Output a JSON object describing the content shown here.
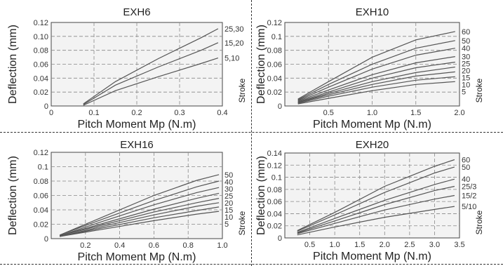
{
  "chart_data": [
    {
      "type": "line",
      "title": "EXH6",
      "xlabel": "Pitch Moment Mp  (N.m)",
      "ylabel": "Deflection  (mm)",
      "series_axis_label": "Stroke",
      "xlim": [
        0,
        0.4
      ],
      "ylim": [
        0,
        0.12
      ],
      "xticks": [
        "0",
        "0.1",
        "0.2",
        "0.3",
        "0.4"
      ],
      "yticks": [
        "0",
        "0.02",
        "0.04",
        "0.06",
        "0.08",
        "0.10",
        "0.12"
      ],
      "grid": true,
      "series": [
        {
          "name": "25,30",
          "x": [
            0.075,
            0.15,
            0.25,
            0.35,
            0.39
          ],
          "y": [
            0.003,
            0.035,
            0.068,
            0.098,
            0.111
          ]
        },
        {
          "name": "15,20",
          "x": [
            0.075,
            0.15,
            0.25,
            0.35,
            0.39
          ],
          "y": [
            0.002,
            0.03,
            0.056,
            0.08,
            0.091
          ]
        },
        {
          "name": "5,10",
          "x": [
            0.075,
            0.15,
            0.25,
            0.35,
            0.39
          ],
          "y": [
            0.001,
            0.022,
            0.042,
            0.061,
            0.069
          ]
        }
      ]
    },
    {
      "type": "line",
      "title": "EXH10",
      "xlabel": "Pitch Moment Mp  (N.m)",
      "ylabel": "Deflection  (mm)",
      "series_axis_label": "Stroke",
      "xlim": [
        0,
        2.0
      ],
      "ylim": [
        0,
        0.12
      ],
      "xticks": [
        "0.5",
        "1.0",
        "1.5",
        "2.0"
      ],
      "yticks": [
        "0",
        "0.02",
        "0.04",
        "0.06",
        "0.08",
        "0.1",
        "0.12"
      ],
      "grid": true,
      "series": [
        {
          "name": "60",
          "x": [
            0.15,
            0.5,
            1.0,
            1.5,
            1.95
          ],
          "y": [
            0.01,
            0.035,
            0.07,
            0.095,
            0.107
          ]
        },
        {
          "name": "50",
          "x": [
            0.15,
            0.5,
            1.0,
            1.5,
            1.95
          ],
          "y": [
            0.009,
            0.031,
            0.06,
            0.083,
            0.094
          ]
        },
        {
          "name": "40",
          "x": [
            0.15,
            0.5,
            1.0,
            1.5,
            1.95
          ],
          "y": [
            0.008,
            0.027,
            0.053,
            0.073,
            0.083
          ]
        },
        {
          "name": "30",
          "x": [
            0.15,
            0.5,
            1.0,
            1.5,
            1.95
          ],
          "y": [
            0.007,
            0.023,
            0.045,
            0.062,
            0.071
          ]
        },
        {
          "name": "25",
          "x": [
            0.15,
            0.5,
            1.0,
            1.5,
            1.95
          ],
          "y": [
            0.006,
            0.02,
            0.04,
            0.055,
            0.063
          ]
        },
        {
          "name": "20",
          "x": [
            0.15,
            0.5,
            1.0,
            1.5,
            1.95
          ],
          "y": [
            0.005,
            0.018,
            0.035,
            0.048,
            0.056
          ]
        },
        {
          "name": "15",
          "x": [
            0.15,
            0.5,
            1.0,
            1.5,
            1.95
          ],
          "y": [
            0.005,
            0.016,
            0.031,
            0.043,
            0.049
          ]
        },
        {
          "name": "10",
          "x": [
            0.15,
            0.5,
            1.0,
            1.5,
            1.95
          ],
          "y": [
            0.004,
            0.014,
            0.027,
            0.037,
            0.042
          ]
        },
        {
          "name": "5",
          "x": [
            0.15,
            0.5,
            1.0,
            1.5,
            1.95
          ],
          "y": [
            0.003,
            0.011,
            0.022,
            0.031,
            0.035
          ]
        }
      ]
    },
    {
      "type": "line",
      "title": "EXH16",
      "xlabel": "Pitch Moment Mp  (N.m)",
      "ylabel": "Deflection  (mm)",
      "series_axis_label": "Stroke",
      "xlim": [
        0,
        1.0
      ],
      "ylim": [
        0,
        0.12
      ],
      "xticks": [
        "0.2",
        "0.4",
        "0.6",
        "0.8",
        "1.0"
      ],
      "yticks": [
        "0",
        "0.02",
        "0.04",
        "0.06",
        "0.08",
        "0.1",
        "0.12"
      ],
      "grid": true,
      "series": [
        {
          "name": "50",
          "x": [
            0.05,
            0.3,
            0.6,
            0.85,
            0.98
          ],
          "y": [
            0.005,
            0.03,
            0.06,
            0.081,
            0.089
          ]
        },
        {
          "name": "40",
          "x": [
            0.05,
            0.3,
            0.6,
            0.85,
            0.98
          ],
          "y": [
            0.005,
            0.027,
            0.053,
            0.072,
            0.08
          ]
        },
        {
          "name": "30",
          "x": [
            0.05,
            0.3,
            0.6,
            0.85,
            0.98
          ],
          "y": [
            0.004,
            0.024,
            0.047,
            0.064,
            0.071
          ]
        },
        {
          "name": "25",
          "x": [
            0.05,
            0.3,
            0.6,
            0.85,
            0.98
          ],
          "y": [
            0.004,
            0.021,
            0.041,
            0.056,
            0.063
          ]
        },
        {
          "name": "20",
          "x": [
            0.05,
            0.3,
            0.6,
            0.85,
            0.98
          ],
          "y": [
            0.004,
            0.019,
            0.037,
            0.05,
            0.056
          ]
        },
        {
          "name": "15",
          "x": [
            0.05,
            0.3,
            0.6,
            0.85,
            0.98
          ],
          "y": [
            0.003,
            0.017,
            0.033,
            0.045,
            0.05
          ]
        },
        {
          "name": "10",
          "x": [
            0.05,
            0.3,
            0.6,
            0.85,
            0.98
          ],
          "y": [
            0.003,
            0.015,
            0.029,
            0.039,
            0.044
          ]
        },
        {
          "name": "5",
          "x": [
            0.05,
            0.3,
            0.6,
            0.85,
            0.98
          ],
          "y": [
            0.003,
            0.013,
            0.025,
            0.034,
            0.038
          ]
        }
      ]
    },
    {
      "type": "line",
      "title": "EXH20",
      "xlabel": "Pitch Moment Mp  (N.m)",
      "ylabel": "Deflection  (mm)",
      "series_axis_label": "Stroke",
      "xlim": [
        0,
        3.5
      ],
      "ylim": [
        0,
        0.14
      ],
      "xticks": [
        "0.5",
        "1.0",
        "1.5",
        "2.0",
        "2.5",
        "3.0",
        "3.5"
      ],
      "yticks": [
        "0",
        "0.02",
        "0.04",
        "0.06",
        "0.08",
        "0.1",
        "0.12",
        "0.14"
      ],
      "grid": true,
      "series": [
        {
          "name": "60",
          "x": [
            0.25,
            1.0,
            2.0,
            3.0,
            3.4
          ],
          "y": [
            0.012,
            0.042,
            0.085,
            0.118,
            0.129
          ]
        },
        {
          "name": "50",
          "x": [
            0.25,
            1.0,
            2.0,
            3.0,
            3.4
          ],
          "y": [
            0.011,
            0.038,
            0.075,
            0.107,
            0.117
          ]
        },
        {
          "name": "40",
          "x": [
            0.25,
            1.0,
            2.0,
            3.0,
            3.4
          ],
          "y": [
            0.009,
            0.032,
            0.062,
            0.088,
            0.097
          ]
        },
        {
          "name": "25/3",
          "x": [
            0.25,
            1.0,
            2.0,
            3.0,
            3.4
          ],
          "y": [
            0.008,
            0.028,
            0.055,
            0.078,
            0.085
          ]
        },
        {
          "name": "15/2",
          "x": [
            0.25,
            1.0,
            2.0,
            3.0,
            3.4
          ],
          "y": [
            0.007,
            0.024,
            0.046,
            0.064,
            0.07
          ]
        },
        {
          "name": "5/10",
          "x": [
            0.25,
            1.0,
            2.0,
            3.0,
            3.4
          ],
          "y": [
            0.005,
            0.018,
            0.034,
            0.047,
            0.052
          ]
        }
      ]
    }
  ]
}
